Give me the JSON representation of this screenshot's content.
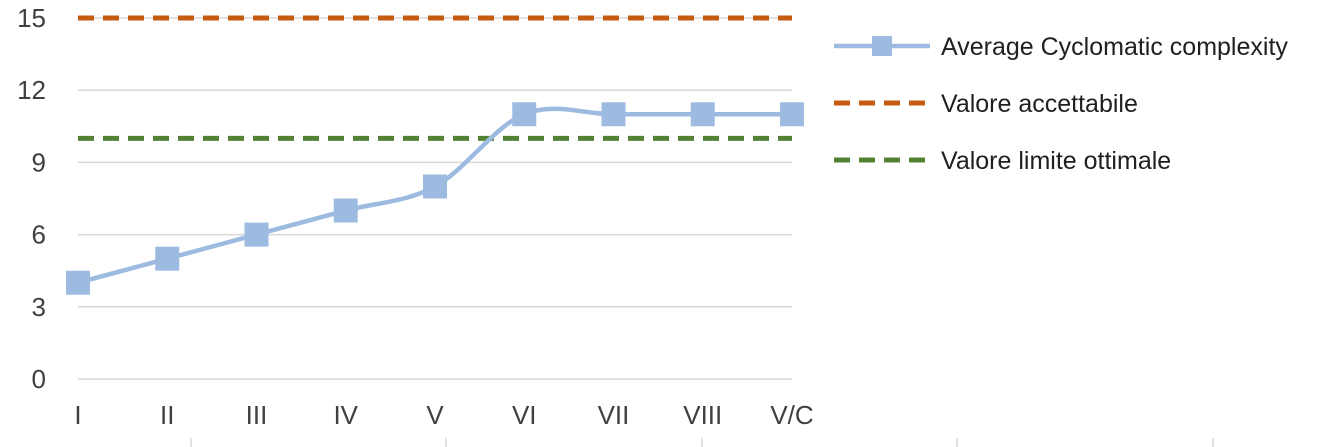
{
  "chart_data": {
    "type": "line",
    "categories": [
      "I",
      "II",
      "III",
      "IV",
      "V",
      "VI",
      "VII",
      "VIII",
      "V/C"
    ],
    "y_ticks": [
      "0",
      "3",
      "6",
      "9",
      "12",
      "15"
    ],
    "ylim": [
      0,
      15
    ],
    "grid": true,
    "legend_position": "right",
    "series": [
      {
        "name": "Average Cyclomatic complexity",
        "values": [
          4,
          5,
          6,
          7,
          8,
          11,
          11,
          11,
          11
        ],
        "color": "#9dbbe0",
        "style": "solid-square-markers-smooth"
      },
      {
        "name": "Valore accettabile",
        "values": [
          15,
          15,
          15,
          15,
          15,
          15,
          15,
          15,
          15
        ],
        "color": "#c55a11",
        "style": "dashed"
      },
      {
        "name": "Valore limite ottimale",
        "values": [
          10,
          10,
          10,
          10,
          10,
          10,
          10,
          10,
          10
        ],
        "color": "#548235",
        "style": "dashed"
      }
    ]
  }
}
